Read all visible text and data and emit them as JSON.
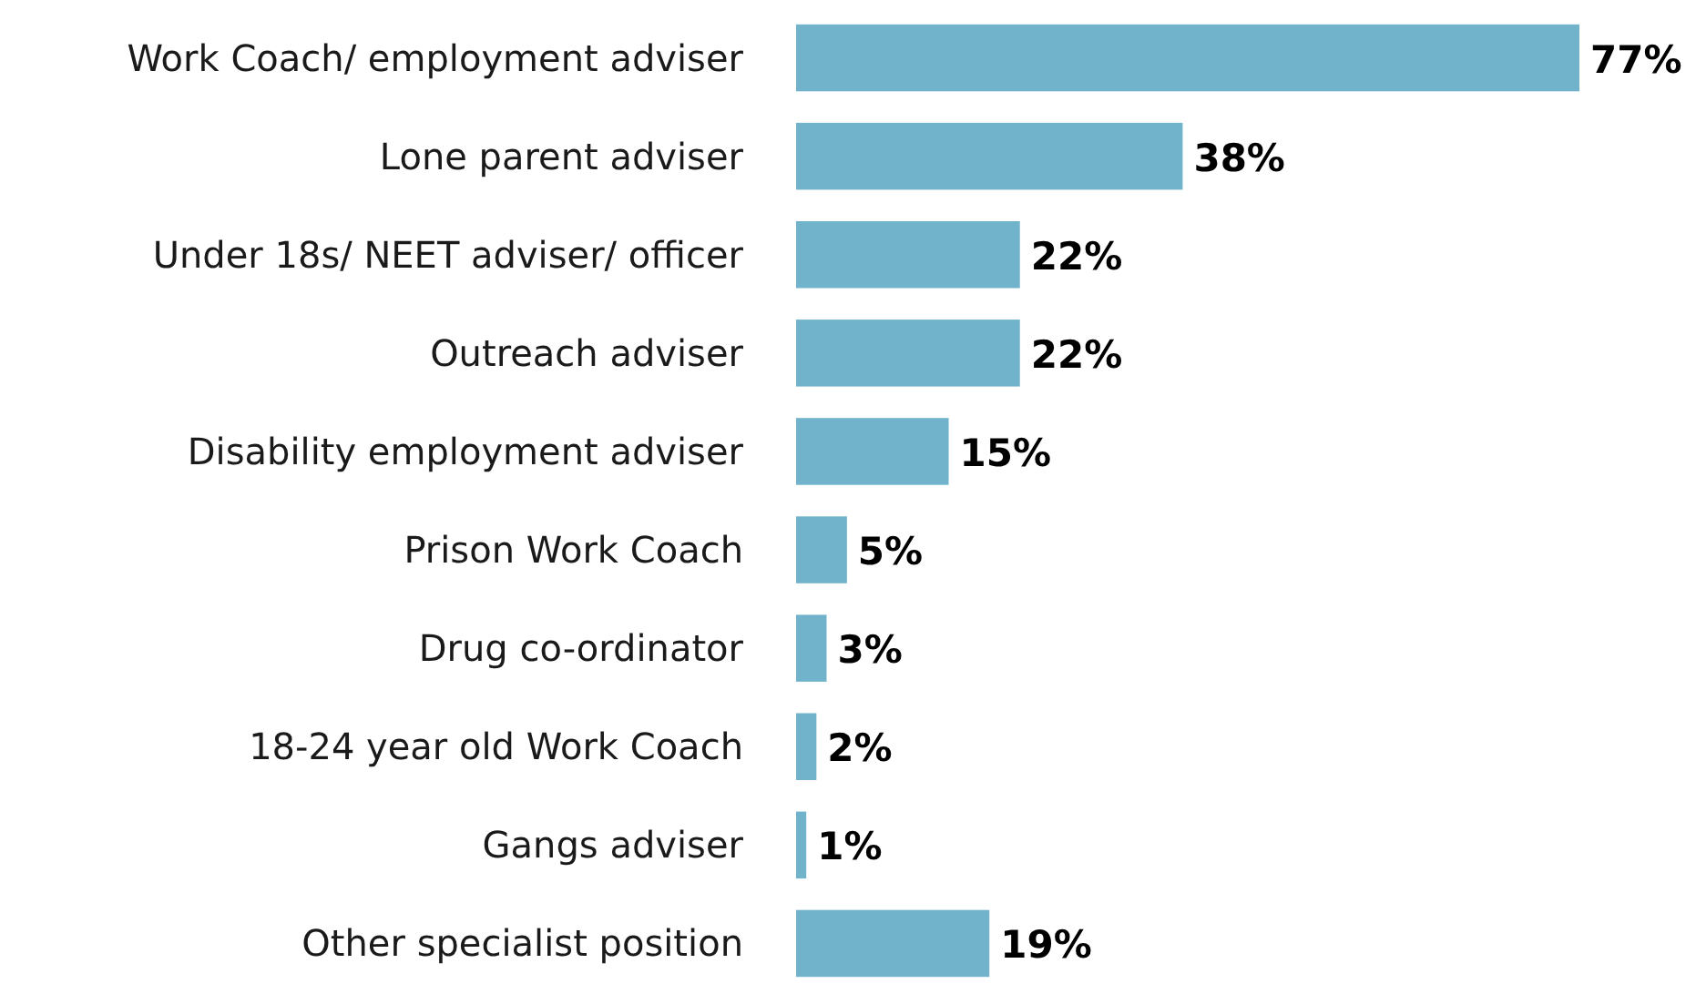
{
  "chart_data": {
    "type": "bar",
    "orientation": "horizontal",
    "categories": [
      "Work Coach/ employment adviser",
      "Lone parent adviser",
      "Under 18s/ NEET adviser/ officer",
      "Outreach adviser",
      "Disability employment adviser",
      "Prison Work Coach",
      "Drug co-ordinator",
      "18-24 year old Work Coach",
      "Gangs adviser",
      "Other specialist position"
    ],
    "values": [
      77,
      38,
      22,
      22,
      15,
      5,
      3,
      2,
      1,
      19
    ],
    "value_labels": [
      "77%",
      "38%",
      "22%",
      "22%",
      "15%",
      "5%",
      "3%",
      "2%",
      "1%",
      "19%"
    ],
    "color": "#70b3cb"
  }
}
